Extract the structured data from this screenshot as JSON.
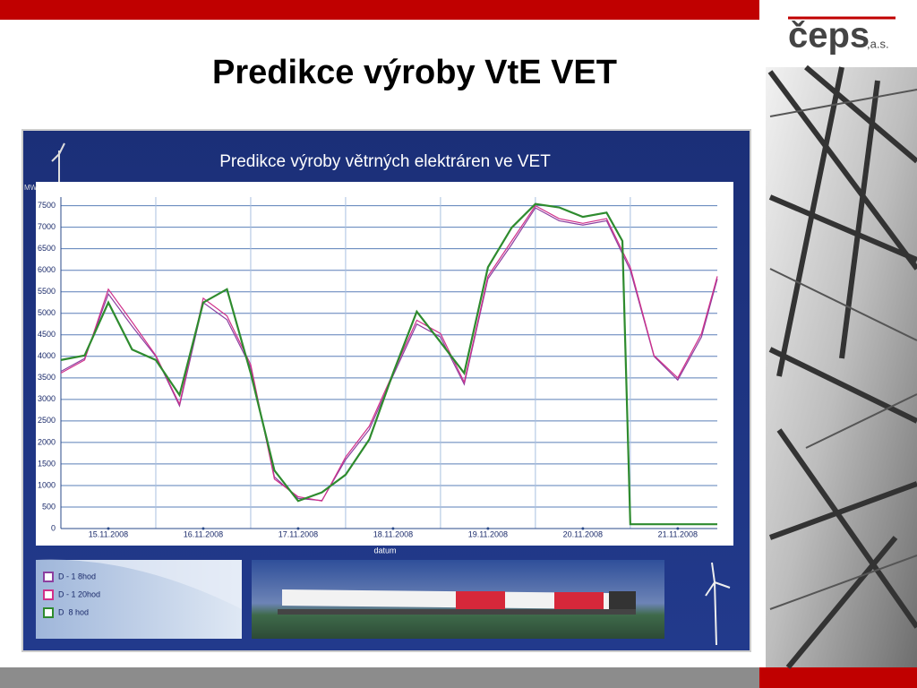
{
  "slide_title": "Predikce výroby VtE VET",
  "logo": {
    "name": "čeps",
    "suffix": ",a.s."
  },
  "chart_data": {
    "type": "line",
    "title": "Predikce výroby větrných elektráren ve VET",
    "y_label": "MW",
    "x_label": "datum",
    "xlim": [
      0,
      166
    ],
    "ylim": [
      0,
      7700
    ],
    "yticks": [
      0,
      500,
      1000,
      1500,
      2000,
      2500,
      3000,
      3500,
      4000,
      4500,
      5000,
      5500,
      6000,
      6500,
      7000,
      7500
    ],
    "xticks": [
      {
        "value": 12,
        "label": "15.11.2008"
      },
      {
        "value": 36,
        "label": "16.11.2008"
      },
      {
        "value": 60,
        "label": "17.11.2008"
      },
      {
        "value": 84,
        "label": "18.11.2008"
      },
      {
        "value": 108,
        "label": "19.11.2008"
      },
      {
        "value": 132,
        "label": "20.11.2008"
      },
      {
        "value": 156,
        "label": "21.11.2008"
      }
    ],
    "x_gridlines": [
      24,
      48,
      72,
      96,
      120,
      144
    ],
    "grid": true,
    "series": [
      {
        "name": "D - 1 8hod",
        "color": "#8c3fa0",
        "x": [
          0,
          6,
          12,
          18,
          24,
          30,
          36,
          42,
          48,
          54,
          60,
          66,
          72,
          78,
          84,
          90,
          96,
          102,
          108,
          114,
          120,
          126,
          132,
          138,
          144,
          150,
          156,
          162,
          166
        ],
        "values": [
          3650,
          3950,
          5450,
          4700,
          4000,
          2850,
          5250,
          4850,
          3750,
          1200,
          700,
          650,
          1600,
          2300,
          3550,
          4750,
          4450,
          3350,
          5800,
          6600,
          7450,
          7150,
          7050,
          7150,
          6000,
          4000,
          3450,
          4450,
          5800
        ]
      },
      {
        "name": "D - 1 20hod",
        "color": "#d0308a",
        "x": [
          0,
          6,
          12,
          18,
          24,
          30,
          36,
          42,
          48,
          54,
          60,
          66,
          72,
          78,
          84,
          90,
          96,
          102,
          108,
          114,
          120,
          126,
          132,
          138,
          144,
          150,
          156,
          162,
          166
        ],
        "values": [
          3610,
          3915,
          5560,
          4800,
          4020,
          2890,
          5350,
          4940,
          3810,
          1150,
          740,
          640,
          1660,
          2380,
          3610,
          4840,
          4530,
          3400,
          5860,
          6680,
          7500,
          7200,
          7090,
          7200,
          6070,
          4020,
          3500,
          4530,
          5860
        ]
      },
      {
        "name": "D  8 hod",
        "color": "#2e8b2e",
        "x": [
          0,
          6,
          12,
          18,
          24,
          30,
          36,
          42,
          48,
          54,
          60,
          66,
          72,
          78,
          84,
          90,
          96,
          102,
          108,
          114,
          120,
          126,
          132,
          138,
          142,
          144,
          150,
          156,
          162,
          166
        ],
        "values": [
          3915,
          4020,
          5250,
          4160,
          3915,
          3100,
          5250,
          5560,
          3610,
          1350,
          640,
          840,
          1250,
          2070,
          3610,
          5040,
          4330,
          3610,
          6070,
          6990,
          7540,
          7460,
          7240,
          7340,
          6680,
          100,
          100,
          100,
          100,
          100
        ]
      }
    ]
  }
}
